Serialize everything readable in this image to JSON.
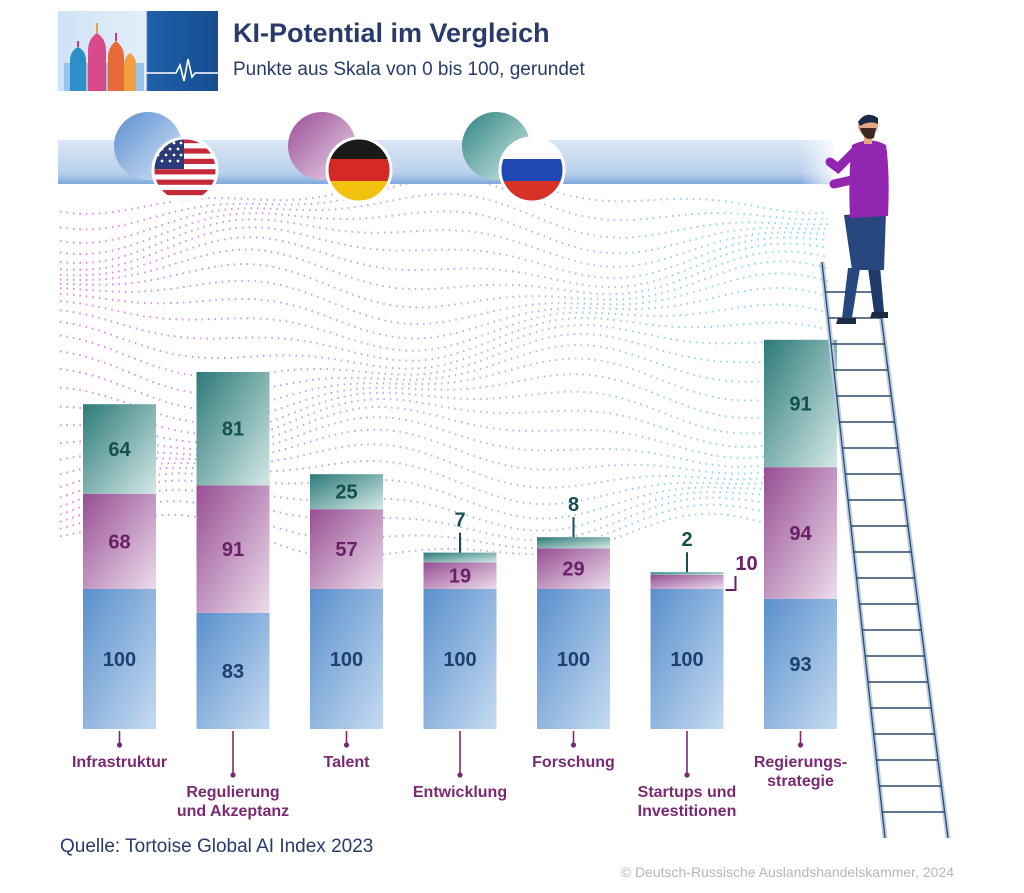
{
  "header": {
    "title": "KI-Potential im Vergleich",
    "subtitle": "Punkte aus Skala von 0 bis 100, gerundet"
  },
  "chart_data": {
    "type": "bar",
    "stacked": true,
    "title": "KI-Potential im Vergleich",
    "subtitle": "Punkte aus Skala von 0 bis 100, gerundet",
    "ylim": [
      0,
      300
    ],
    "categories": [
      "Infrastruktur",
      "Regulierung und Akzeptanz",
      "Talent",
      "Entwicklung",
      "Forschung",
      "Startups und Investitionen",
      "Regierungs-strategie"
    ],
    "category_labels": [
      [
        "Infrastruktur"
      ],
      [
        "Regulierung",
        "und Akzeptanz"
      ],
      [
        "Talent"
      ],
      [
        "Entwicklung"
      ],
      [
        "Forschung"
      ],
      [
        "Startups und",
        "Investitionen"
      ],
      [
        "Regierungs-",
        "strategie"
      ]
    ],
    "series": [
      {
        "name": "USA",
        "flag_icon": "us-flag-icon",
        "color": "#5b90cc",
        "label_color": "#1f3f70",
        "values": [
          100,
          83,
          100,
          100,
          100,
          100,
          93
        ]
      },
      {
        "name": "Deutschland",
        "flag_icon": "germany-flag-icon",
        "color": "#974e93",
        "label_color": "#6a1f66",
        "values": [
          68,
          91,
          57,
          19,
          29,
          10,
          94
        ]
      },
      {
        "name": "Russland",
        "flag_icon": "russia-flag-icon",
        "color": "#2c7a78",
        "label_color": "#13504f",
        "values": [
          64,
          81,
          25,
          7,
          8,
          2,
          91
        ]
      }
    ]
  },
  "footer": {
    "source": "Quelle: Tortoise Global AI Index 2023",
    "copyright": "© Deutsch-Russische Auslandshandelskammer, 2024"
  },
  "colors": {
    "title": "#2a3a6b",
    "category_label": "#7a2a72"
  }
}
